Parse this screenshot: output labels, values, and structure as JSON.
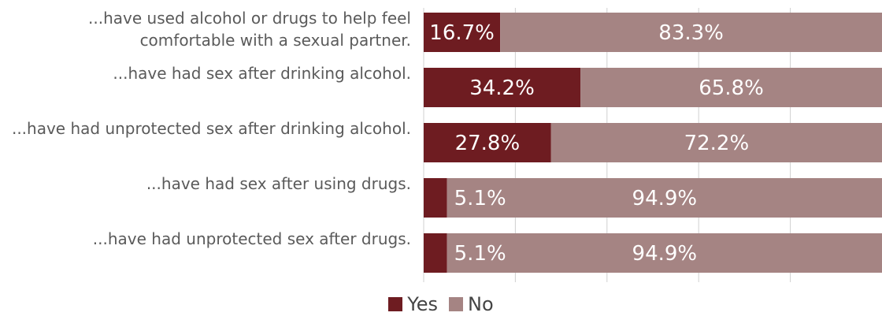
{
  "colors": {
    "yes": "#6e1c21",
    "no": "#a58483",
    "grid": "#d0d0d0",
    "label_text": "#5a5a5a",
    "bar_text": "#ffffff"
  },
  "legend": {
    "items": [
      {
        "label": "Yes"
      },
      {
        "label": "No"
      }
    ]
  },
  "chart_data": {
    "type": "bar",
    "orientation": "horizontal",
    "stacked": true,
    "percent_stacked": true,
    "categories": [
      "...have used alcohol or drugs to help feel comfortable with a sexual partner.",
      "...have had sex after drinking alcohol.",
      "...have had unprotected sex after drinking alcohol.",
      "...have had sex after using drugs.",
      "...have had unprotected sex after drugs."
    ],
    "series": [
      {
        "name": "Yes",
        "values": [
          16.7,
          34.2,
          27.8,
          5.1,
          5.1
        ]
      },
      {
        "name": "No",
        "values": [
          83.3,
          65.8,
          72.2,
          94.9,
          94.9
        ]
      }
    ],
    "data_labels": {
      "Yes": [
        "16.7%",
        "34.2%",
        "27.8%",
        "5.1%",
        "5.1%"
      ],
      "No": [
        "83.3%",
        "65.8%",
        "72.2%",
        "94.9%",
        "94.9%"
      ]
    },
    "xlim": [
      0,
      100
    ],
    "grid": true,
    "legend_position": "bottom"
  }
}
